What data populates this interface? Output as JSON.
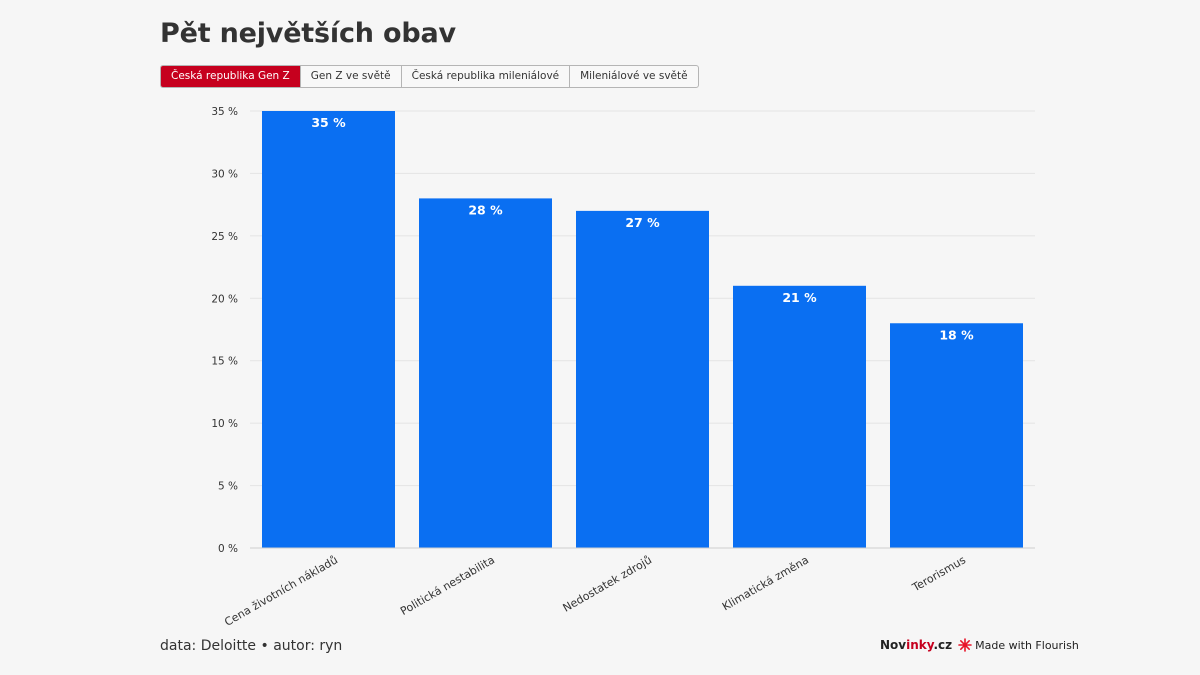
{
  "title": "Pět největších obav",
  "tabs": [
    {
      "label": "Česká republika Gen Z",
      "active": true
    },
    {
      "label": "Gen Z ve světě",
      "active": false
    },
    {
      "label": "Česká republika mileniálové",
      "active": false
    },
    {
      "label": "Mileniálové ve světě",
      "active": false
    }
  ],
  "colors": {
    "bar": "#0a6ff2",
    "accent": "#c6001e",
    "grid": "#e4e4e4"
  },
  "chart_data": {
    "type": "bar",
    "title": "Pět největších obav",
    "categories": [
      "Cena životních nákladů",
      "Politická nestabilita",
      "Nedostatek zdrojů",
      "Klimatická změna",
      "Terorismus"
    ],
    "values": [
      35,
      28,
      27,
      21,
      18
    ],
    "value_labels": [
      "35 %",
      "28 %",
      "27 %",
      "21 %",
      "18 %"
    ],
    "y_ticks": [
      0,
      5,
      10,
      15,
      20,
      25,
      30,
      35
    ],
    "y_tick_labels": [
      "0 %",
      "5 %",
      "10 %",
      "15 %",
      "20 %",
      "25 %",
      "30 %",
      "35 %"
    ],
    "ylim": [
      0,
      35
    ],
    "xlabel": "",
    "ylabel": "",
    "grid": true
  },
  "footer": {
    "source": "data: Deloitte • autor: ryn",
    "brand_prefix": "Nov",
    "brand_accent": "inky",
    "brand_suffix": ".cz",
    "flourish": "Made with Flourish"
  }
}
